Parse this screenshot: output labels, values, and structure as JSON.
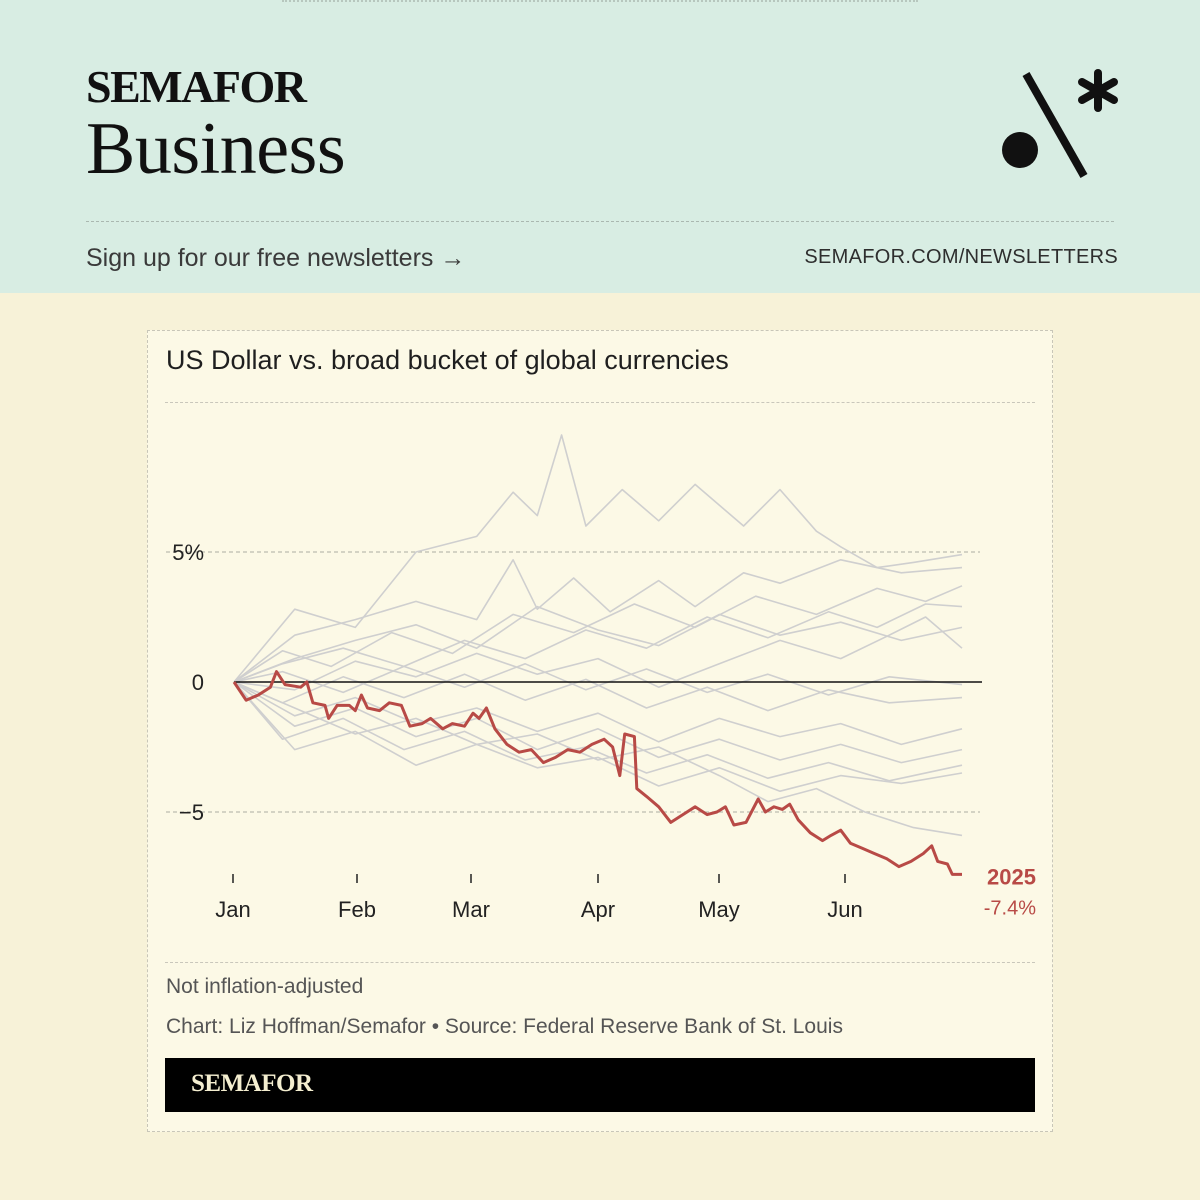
{
  "header": {
    "brand": "SEMAFOR",
    "section": "Business",
    "signup_text": "Sign up for our free newsletters →",
    "signup_url": "SEMAFOR.COM/NEWSLETTERS",
    "logo_icon": "semafor-dot-slash-asterisk-icon"
  },
  "chart": {
    "title": "US Dollar vs. broad bucket of global currencies",
    "note": "Not inflation-adjusted",
    "credit": "Chart: Liz Hoffman/Semafor • Source: Federal Reserve Bank of St. Louis",
    "footer_brand": "SEMAFOR",
    "highlight_label": "2025",
    "highlight_value": "-7.4%"
  },
  "chart_data": {
    "type": "line",
    "title": "US Dollar vs. broad bucket of global currencies",
    "xlabel": "",
    "ylabel": "",
    "x_ticks": [
      "Jan",
      "Feb",
      "Mar",
      "Apr",
      "May",
      "Jun"
    ],
    "y_ticks": [
      {
        "value": 5,
        "label": "5%"
      },
      {
        "value": 0,
        "label": "0"
      },
      {
        "value": -5,
        "label": "−5"
      }
    ],
    "ylim": [
      -7.5,
      10
    ],
    "xlim": [
      0,
      6
    ],
    "grid": true,
    "colors": {
      "highlight": "#b84a46",
      "background_series": "#cfcfcf",
      "zero_line": "#111111"
    },
    "highlight_series": {
      "name": "2025",
      "final_label": "-7.4%",
      "points": [
        [
          0,
          0
        ],
        [
          0.1,
          -0.7
        ],
        [
          0.2,
          -0.5
        ],
        [
          0.3,
          -0.2
        ],
        [
          0.35,
          0.4
        ],
        [
          0.42,
          -0.1
        ],
        [
          0.55,
          -0.2
        ],
        [
          0.6,
          0
        ],
        [
          0.65,
          -0.8
        ],
        [
          0.75,
          -0.9
        ],
        [
          0.78,
          -1.4
        ],
        [
          0.85,
          -0.9
        ],
        [
          0.95,
          -0.9
        ],
        [
          1.0,
          -1.1
        ],
        [
          1.05,
          -0.5
        ],
        [
          1.1,
          -1.0
        ],
        [
          1.2,
          -1.1
        ],
        [
          1.28,
          -0.8
        ],
        [
          1.38,
          -0.9
        ],
        [
          1.45,
          -1.7
        ],
        [
          1.55,
          -1.6
        ],
        [
          1.62,
          -1.4
        ],
        [
          1.72,
          -1.8
        ],
        [
          1.8,
          -1.6
        ],
        [
          1.9,
          -1.7
        ],
        [
          1.97,
          -1.2
        ],
        [
          2.02,
          -1.4
        ],
        [
          2.08,
          -1.0
        ],
        [
          2.15,
          -1.8
        ],
        [
          2.25,
          -2.4
        ],
        [
          2.35,
          -2.7
        ],
        [
          2.45,
          -2.6
        ],
        [
          2.55,
          -3.1
        ],
        [
          2.65,
          -2.9
        ],
        [
          2.75,
          -2.6
        ],
        [
          2.85,
          -2.7
        ],
        [
          2.95,
          -2.4
        ],
        [
          3.05,
          -2.2
        ],
        [
          3.12,
          -2.5
        ],
        [
          3.18,
          -3.6
        ],
        [
          3.22,
          -2.0
        ],
        [
          3.3,
          -2.1
        ],
        [
          3.32,
          -4.1
        ],
        [
          3.4,
          -4.4
        ],
        [
          3.5,
          -4.8
        ],
        [
          3.6,
          -5.4
        ],
        [
          3.7,
          -5.1
        ],
        [
          3.8,
          -4.8
        ],
        [
          3.9,
          -5.1
        ],
        [
          3.98,
          -5.0
        ],
        [
          4.05,
          -4.8
        ],
        [
          4.12,
          -5.5
        ],
        [
          4.22,
          -5.4
        ],
        [
          4.32,
          -4.5
        ],
        [
          4.38,
          -5.0
        ],
        [
          4.45,
          -4.8
        ],
        [
          4.52,
          -4.9
        ],
        [
          4.58,
          -4.7
        ],
        [
          4.65,
          -5.3
        ],
        [
          4.75,
          -5.8
        ],
        [
          4.85,
          -6.1
        ],
        [
          4.92,
          -5.9
        ],
        [
          5.0,
          -5.7
        ],
        [
          5.08,
          -6.2
        ],
        [
          5.18,
          -6.4
        ],
        [
          5.28,
          -6.6
        ],
        [
          5.38,
          -6.8
        ],
        [
          5.48,
          -7.1
        ],
        [
          5.58,
          -6.9
        ],
        [
          5.68,
          -6.6
        ],
        [
          5.75,
          -6.3
        ],
        [
          5.8,
          -6.9
        ],
        [
          5.88,
          -7.0
        ],
        [
          5.92,
          -7.4
        ],
        [
          6.0,
          -7.4
        ]
      ]
    },
    "background_series": [
      {
        "points": [
          [
            0,
            0
          ],
          [
            0.5,
            2.8
          ],
          [
            1.0,
            2.1
          ],
          [
            1.5,
            5.0
          ],
          [
            2.0,
            5.6
          ],
          [
            2.3,
            7.3
          ],
          [
            2.5,
            6.4
          ],
          [
            2.7,
            9.5
          ],
          [
            2.9,
            6.0
          ],
          [
            3.2,
            7.4
          ],
          [
            3.5,
            6.2
          ],
          [
            3.8,
            7.6
          ],
          [
            4.2,
            6.0
          ],
          [
            4.5,
            7.4
          ],
          [
            4.8,
            5.8
          ],
          [
            5.0,
            5.2
          ],
          [
            5.3,
            4.4
          ],
          [
            5.6,
            4.6
          ],
          [
            6.0,
            4.9
          ]
        ]
      },
      {
        "points": [
          [
            0,
            0
          ],
          [
            0.5,
            1.8
          ],
          [
            1.0,
            2.4
          ],
          [
            1.5,
            3.1
          ],
          [
            2.0,
            2.4
          ],
          [
            2.3,
            4.7
          ],
          [
            2.5,
            2.8
          ],
          [
            2.8,
            4.0
          ],
          [
            3.1,
            2.7
          ],
          [
            3.5,
            3.9
          ],
          [
            3.8,
            2.9
          ],
          [
            4.2,
            4.2
          ],
          [
            4.5,
            3.8
          ],
          [
            5.0,
            4.7
          ],
          [
            5.5,
            4.2
          ],
          [
            6.0,
            4.4
          ]
        ]
      },
      {
        "points": [
          [
            0,
            0
          ],
          [
            0.4,
            1.2
          ],
          [
            0.8,
            0.6
          ],
          [
            1.3,
            1.9
          ],
          [
            1.8,
            1.1
          ],
          [
            2.3,
            2.6
          ],
          [
            2.8,
            1.9
          ],
          [
            3.3,
            3.0
          ],
          [
            3.8,
            2.1
          ],
          [
            4.3,
            3.3
          ],
          [
            4.8,
            2.6
          ],
          [
            5.3,
            3.6
          ],
          [
            5.7,
            3.1
          ],
          [
            6.0,
            3.7
          ]
        ]
      },
      {
        "points": [
          [
            0,
            0
          ],
          [
            0.4,
            0.7
          ],
          [
            0.9,
            1.3
          ],
          [
            1.4,
            0.6
          ],
          [
            1.9,
            1.6
          ],
          [
            2.4,
            0.9
          ],
          [
            2.9,
            2.0
          ],
          [
            3.4,
            1.3
          ],
          [
            3.9,
            2.5
          ],
          [
            4.4,
            1.7
          ],
          [
            4.9,
            2.7
          ],
          [
            5.3,
            2.1
          ],
          [
            5.7,
            3.0
          ],
          [
            6.0,
            2.9
          ]
        ]
      },
      {
        "points": [
          [
            0,
            0
          ],
          [
            0.5,
            -0.3
          ],
          [
            1.0,
            0.8
          ],
          [
            1.5,
            0.2
          ],
          [
            2.0,
            1.1
          ],
          [
            2.5,
            0.3
          ],
          [
            3.0,
            0.9
          ],
          [
            3.5,
            -0.2
          ],
          [
            4.0,
            0.7
          ],
          [
            4.5,
            1.6
          ],
          [
            5.0,
            0.9
          ],
          [
            5.4,
            1.8
          ],
          [
            5.7,
            2.5
          ],
          [
            6.0,
            1.3
          ]
        ]
      },
      {
        "points": [
          [
            0,
            0
          ],
          [
            0.4,
            -0.8
          ],
          [
            0.9,
            0.2
          ],
          [
            1.4,
            -0.6
          ],
          [
            1.9,
            0.3
          ],
          [
            2.4,
            -0.7
          ],
          [
            2.9,
            0.1
          ],
          [
            3.4,
            -1.0
          ],
          [
            3.9,
            -0.2
          ],
          [
            4.4,
            -1.1
          ],
          [
            4.9,
            -0.3
          ],
          [
            5.4,
            -0.8
          ],
          [
            6.0,
            -0.6
          ]
        ]
      },
      {
        "points": [
          [
            0,
            0
          ],
          [
            0.5,
            -1.3
          ],
          [
            1.0,
            -0.6
          ],
          [
            1.5,
            -1.6
          ],
          [
            2.0,
            -1.0
          ],
          [
            2.5,
            -1.9
          ],
          [
            3.0,
            -1.2
          ],
          [
            3.5,
            -2.3
          ],
          [
            4.0,
            -1.4
          ],
          [
            4.5,
            -2.1
          ],
          [
            5.0,
            -1.6
          ],
          [
            5.5,
            -2.4
          ],
          [
            6.0,
            -1.8
          ]
        ]
      },
      {
        "points": [
          [
            0,
            0
          ],
          [
            0.5,
            -1.7
          ],
          [
            1.0,
            -1.0
          ],
          [
            1.5,
            -2.1
          ],
          [
            2.0,
            -1.4
          ],
          [
            2.5,
            -2.6
          ],
          [
            3.0,
            -1.8
          ],
          [
            3.5,
            -2.9
          ],
          [
            4.0,
            -2.2
          ],
          [
            4.5,
            -3.0
          ],
          [
            5.0,
            -2.4
          ],
          [
            5.5,
            -3.1
          ],
          [
            6.0,
            -2.6
          ]
        ]
      },
      {
        "points": [
          [
            0,
            0
          ],
          [
            0.4,
            -2.2
          ],
          [
            0.9,
            -1.4
          ],
          [
            1.4,
            -2.6
          ],
          [
            1.9,
            -1.9
          ],
          [
            2.4,
            -3.0
          ],
          [
            2.9,
            -2.5
          ],
          [
            3.4,
            -3.5
          ],
          [
            3.9,
            -2.8
          ],
          [
            4.4,
            -3.7
          ],
          [
            4.9,
            -3.1
          ],
          [
            5.4,
            -3.8
          ],
          [
            6.0,
            -3.2
          ]
        ]
      },
      {
        "points": [
          [
            0,
            0
          ],
          [
            0.5,
            -2.6
          ],
          [
            1.0,
            -1.9
          ],
          [
            1.5,
            -3.2
          ],
          [
            2.0,
            -2.4
          ],
          [
            2.5,
            -3.3
          ],
          [
            3.0,
            -2.9
          ],
          [
            3.5,
            -4.0
          ],
          [
            4.0,
            -3.3
          ],
          [
            4.5,
            -4.2
          ],
          [
            5.0,
            -3.6
          ],
          [
            5.5,
            -3.9
          ],
          [
            6.0,
            -3.5
          ]
        ]
      },
      {
        "points": [
          [
            0,
            0
          ],
          [
            0.5,
            -1.0
          ],
          [
            1.0,
            -2.0
          ],
          [
            1.5,
            -1.4
          ],
          [
            2.0,
            -2.4
          ],
          [
            2.5,
            -2.0
          ],
          [
            3.0,
            -3.0
          ],
          [
            3.5,
            -2.5
          ],
          [
            4.0,
            -3.6
          ],
          [
            4.4,
            -4.6
          ],
          [
            4.8,
            -4.1
          ],
          [
            5.2,
            -5.0
          ],
          [
            5.6,
            -5.6
          ],
          [
            6.0,
            -5.9
          ]
        ]
      },
      {
        "points": [
          [
            0,
            0
          ],
          [
            0.4,
            0.4
          ],
          [
            0.9,
            -0.4
          ],
          [
            1.4,
            0.6
          ],
          [
            1.9,
            -0.2
          ],
          [
            2.4,
            0.7
          ],
          [
            2.9,
            -0.3
          ],
          [
            3.4,
            0.5
          ],
          [
            3.9,
            -0.4
          ],
          [
            4.4,
            0.3
          ],
          [
            4.9,
            -0.5
          ],
          [
            5.4,
            0.2
          ],
          [
            6.0,
            -0.1
          ]
        ]
      },
      {
        "points": [
          [
            0,
            0
          ],
          [
            0.5,
            0.9
          ],
          [
            1.0,
            1.6
          ],
          [
            1.5,
            2.2
          ],
          [
            2.0,
            1.3
          ],
          [
            2.5,
            2.9
          ],
          [
            3.0,
            2.0
          ],
          [
            3.5,
            1.4
          ],
          [
            4.0,
            2.6
          ],
          [
            4.5,
            1.8
          ],
          [
            5.0,
            2.3
          ],
          [
            5.5,
            1.6
          ],
          [
            6.0,
            2.1
          ]
        ]
      }
    ]
  }
}
